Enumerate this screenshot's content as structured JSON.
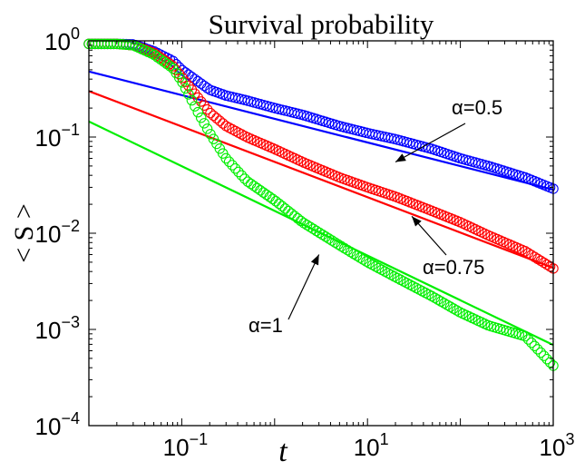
{
  "chart_data": {
    "type": "scatter",
    "title": "Survival probability",
    "xlabel": "t",
    "ylabel": "< S >",
    "xscale": "log",
    "yscale": "log",
    "xlim": [
      0.01,
      1000
    ],
    "ylim": [
      0.0001,
      1
    ],
    "grid": false,
    "x_ticks": [
      {
        "base": "10",
        "exp": "−1",
        "value": 0.1
      },
      {
        "base": "10",
        "exp": "1",
        "value": 10
      },
      {
        "base": "10",
        "exp": "3",
        "value": 1000
      }
    ],
    "y_ticks": [
      {
        "base": "10",
        "exp": "0",
        "value": 1
      },
      {
        "base": "10",
        "exp": "−1",
        "value": 0.1
      },
      {
        "base": "10",
        "exp": "−2",
        "value": 0.01
      },
      {
        "base": "10",
        "exp": "−3",
        "value": 0.001
      },
      {
        "base": "10",
        "exp": "−4",
        "value": 0.0001
      }
    ],
    "series": [
      {
        "key": "alpha05",
        "color": "#0000ff",
        "data_markers": "circle",
        "data": [
          [
            0.01,
            0.93
          ],
          [
            0.02,
            0.93
          ],
          [
            0.03,
            0.92
          ],
          [
            0.05,
            0.78
          ],
          [
            0.08,
            0.62
          ],
          [
            0.1,
            0.5
          ],
          [
            0.2,
            0.31
          ],
          [
            0.3,
            0.27
          ],
          [
            0.5,
            0.24
          ],
          [
            1,
            0.2
          ],
          [
            2,
            0.17
          ],
          [
            5,
            0.13
          ],
          [
            10,
            0.11
          ],
          [
            20,
            0.095
          ],
          [
            50,
            0.075
          ],
          [
            100,
            0.06
          ],
          [
            200,
            0.05
          ],
          [
            500,
            0.038
          ],
          [
            1000,
            0.029
          ]
        ],
        "fit": {
          "x": [
            0.01,
            1000
          ],
          "y": [
            0.48,
            0.0283
          ]
        }
      },
      {
        "key": "alpha075",
        "color": "#ff0000",
        "data_markers": "circle",
        "data": [
          [
            0.01,
            0.93
          ],
          [
            0.02,
            0.93
          ],
          [
            0.03,
            0.9
          ],
          [
            0.05,
            0.75
          ],
          [
            0.08,
            0.55
          ],
          [
            0.1,
            0.42
          ],
          [
            0.2,
            0.18
          ],
          [
            0.3,
            0.13
          ],
          [
            0.5,
            0.1
          ],
          [
            1,
            0.075
          ],
          [
            2,
            0.055
          ],
          [
            5,
            0.038
          ],
          [
            10,
            0.03
          ],
          [
            20,
            0.024
          ],
          [
            50,
            0.017
          ],
          [
            100,
            0.013
          ],
          [
            200,
            0.0095
          ],
          [
            500,
            0.0065
          ],
          [
            1000,
            0.0043
          ]
        ],
        "fit": {
          "x": [
            0.01,
            1000
          ],
          "y": [
            0.3,
            0.00436
          ]
        }
      },
      {
        "key": "alpha1",
        "color": "#00ee00",
        "data_markers": "circle",
        "data": [
          [
            0.01,
            0.93
          ],
          [
            0.02,
            0.93
          ],
          [
            0.03,
            0.9
          ],
          [
            0.05,
            0.72
          ],
          [
            0.08,
            0.52
          ],
          [
            0.1,
            0.38
          ],
          [
            0.15,
            0.18
          ],
          [
            0.2,
            0.11
          ],
          [
            0.3,
            0.06
          ],
          [
            0.5,
            0.035
          ],
          [
            1,
            0.022
          ],
          [
            2,
            0.013
          ],
          [
            5,
            0.0075
          ],
          [
            10,
            0.005
          ],
          [
            20,
            0.0035
          ],
          [
            50,
            0.0022
          ],
          [
            100,
            0.0015
          ],
          [
            200,
            0.0011
          ],
          [
            500,
            0.00085
          ],
          [
            1000,
            0.00042
          ]
        ],
        "fit": {
          "x": [
            0.01,
            1000
          ],
          "y": [
            0.145,
            0.00069
          ]
        }
      }
    ],
    "annotations": [
      {
        "key": "alpha05",
        "text": "α=0.5",
        "arrow_to": [
          20,
          0.055
        ]
      },
      {
        "key": "alpha075",
        "text": "α=0.75",
        "arrow_to": [
          30,
          0.015
        ]
      },
      {
        "key": "alpha1",
        "text": "α=1",
        "arrow_to": [
          3,
          0.006
        ]
      }
    ]
  }
}
